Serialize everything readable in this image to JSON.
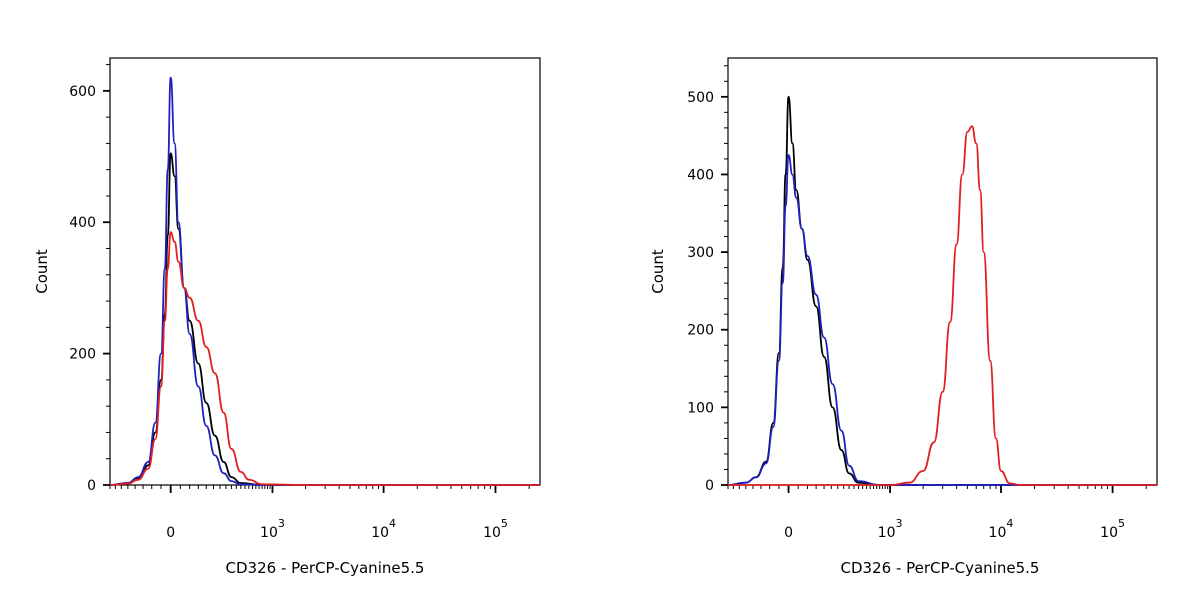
{
  "chart_data": [
    {
      "type": "line",
      "xlabel": "CD326 - PerCP-Cyanine5.5",
      "ylabel": "Count",
      "x_scale": "biexponential",
      "xlim": [
        -400,
        250000
      ],
      "ylim": [
        0,
        650
      ],
      "x_ticks": [
        {
          "value": 0,
          "label": "0"
        },
        {
          "value": 1000,
          "label": "10",
          "exp": "3"
        },
        {
          "value": 10000,
          "label": "10",
          "exp": "4"
        },
        {
          "value": 100000,
          "label": "10",
          "exp": "5"
        }
      ],
      "y_ticks": [
        0,
        200,
        400,
        600
      ],
      "grid": false,
      "series": [
        {
          "color": "#000000",
          "x": [
            -400,
            -250,
            -180,
            -120,
            -80,
            -50,
            -30,
            -15,
            0,
            20,
            40,
            70,
            100,
            150,
            200,
            260,
            330,
            400,
            500,
            800,
            2000,
            10000,
            50000,
            250000
          ],
          "y": [
            0,
            3,
            10,
            30,
            80,
            160,
            260,
            380,
            505,
            470,
            390,
            300,
            250,
            185,
            125,
            75,
            35,
            12,
            3,
            0,
            0,
            0,
            0,
            0
          ]
        },
        {
          "color": "#2020c0",
          "x": [
            -400,
            -250,
            -180,
            -120,
            -80,
            -50,
            -30,
            -15,
            0,
            20,
            40,
            70,
            100,
            150,
            200,
            260,
            330,
            400,
            500,
            800,
            2000,
            10000,
            50000,
            250000
          ],
          "y": [
            0,
            3,
            12,
            35,
            95,
            200,
            330,
            480,
            620,
            520,
            400,
            300,
            230,
            150,
            90,
            45,
            18,
            6,
            1,
            0,
            0,
            0,
            0,
            0
          ]
        },
        {
          "color": "#e02020",
          "x": [
            -400,
            -250,
            -180,
            -120,
            -80,
            -50,
            -30,
            -15,
            0,
            20,
            40,
            70,
            100,
            150,
            200,
            260,
            330,
            400,
            500,
            600,
            800,
            2000,
            10000,
            50000,
            250000
          ],
          "y": [
            0,
            2,
            8,
            25,
            70,
            150,
            250,
            330,
            385,
            370,
            340,
            300,
            285,
            250,
            210,
            170,
            110,
            55,
            20,
            8,
            1,
            0,
            0,
            0,
            0
          ]
        }
      ]
    },
    {
      "type": "line",
      "xlabel": "CD326 - PerCP-Cyanine5.5",
      "ylabel": "Count",
      "x_scale": "biexponential",
      "xlim": [
        -400,
        250000
      ],
      "ylim": [
        0,
        550
      ],
      "x_ticks": [
        {
          "value": 0,
          "label": "0"
        },
        {
          "value": 1000,
          "label": "10",
          "exp": "3"
        },
        {
          "value": 10000,
          "label": "10",
          "exp": "4"
        },
        {
          "value": 100000,
          "label": "10",
          "exp": "5"
        }
      ],
      "y_ticks": [
        0,
        100,
        200,
        300,
        400,
        500
      ],
      "grid": false,
      "series": [
        {
          "color": "#000000",
          "x": [
            -400,
            -250,
            -180,
            -120,
            -80,
            -50,
            -30,
            -15,
            0,
            20,
            40,
            70,
            100,
            150,
            200,
            260,
            330,
            400,
            500,
            800,
            2000,
            10000,
            50000,
            250000
          ],
          "y": [
            0,
            3,
            10,
            30,
            80,
            170,
            280,
            400,
            500,
            440,
            380,
            330,
            290,
            230,
            165,
            100,
            45,
            15,
            3,
            0,
            0,
            0,
            0,
            0
          ]
        },
        {
          "color": "#2020c0",
          "x": [
            -400,
            -250,
            -180,
            -120,
            -80,
            -50,
            -30,
            -15,
            0,
            20,
            40,
            70,
            100,
            150,
            200,
            260,
            330,
            400,
            500,
            800,
            2000,
            10000,
            50000,
            250000
          ],
          "y": [
            0,
            3,
            10,
            28,
            75,
            160,
            260,
            360,
            425,
            400,
            370,
            330,
            295,
            245,
            190,
            130,
            70,
            25,
            5,
            0,
            0,
            0,
            0,
            0
          ]
        },
        {
          "color": "#e02020",
          "x": [
            -400,
            0,
            500,
            1000,
            1500,
            2000,
            2500,
            3000,
            3500,
            4000,
            4500,
            5000,
            5500,
            6000,
            6500,
            7000,
            8000,
            9000,
            10000,
            12000,
            15000,
            20000,
            50000,
            250000
          ],
          "y": [
            0,
            0,
            0,
            0,
            3,
            18,
            55,
            120,
            210,
            310,
            400,
            455,
            462,
            440,
            380,
            300,
            160,
            60,
            18,
            2,
            0,
            0,
            0,
            0
          ]
        }
      ]
    }
  ]
}
